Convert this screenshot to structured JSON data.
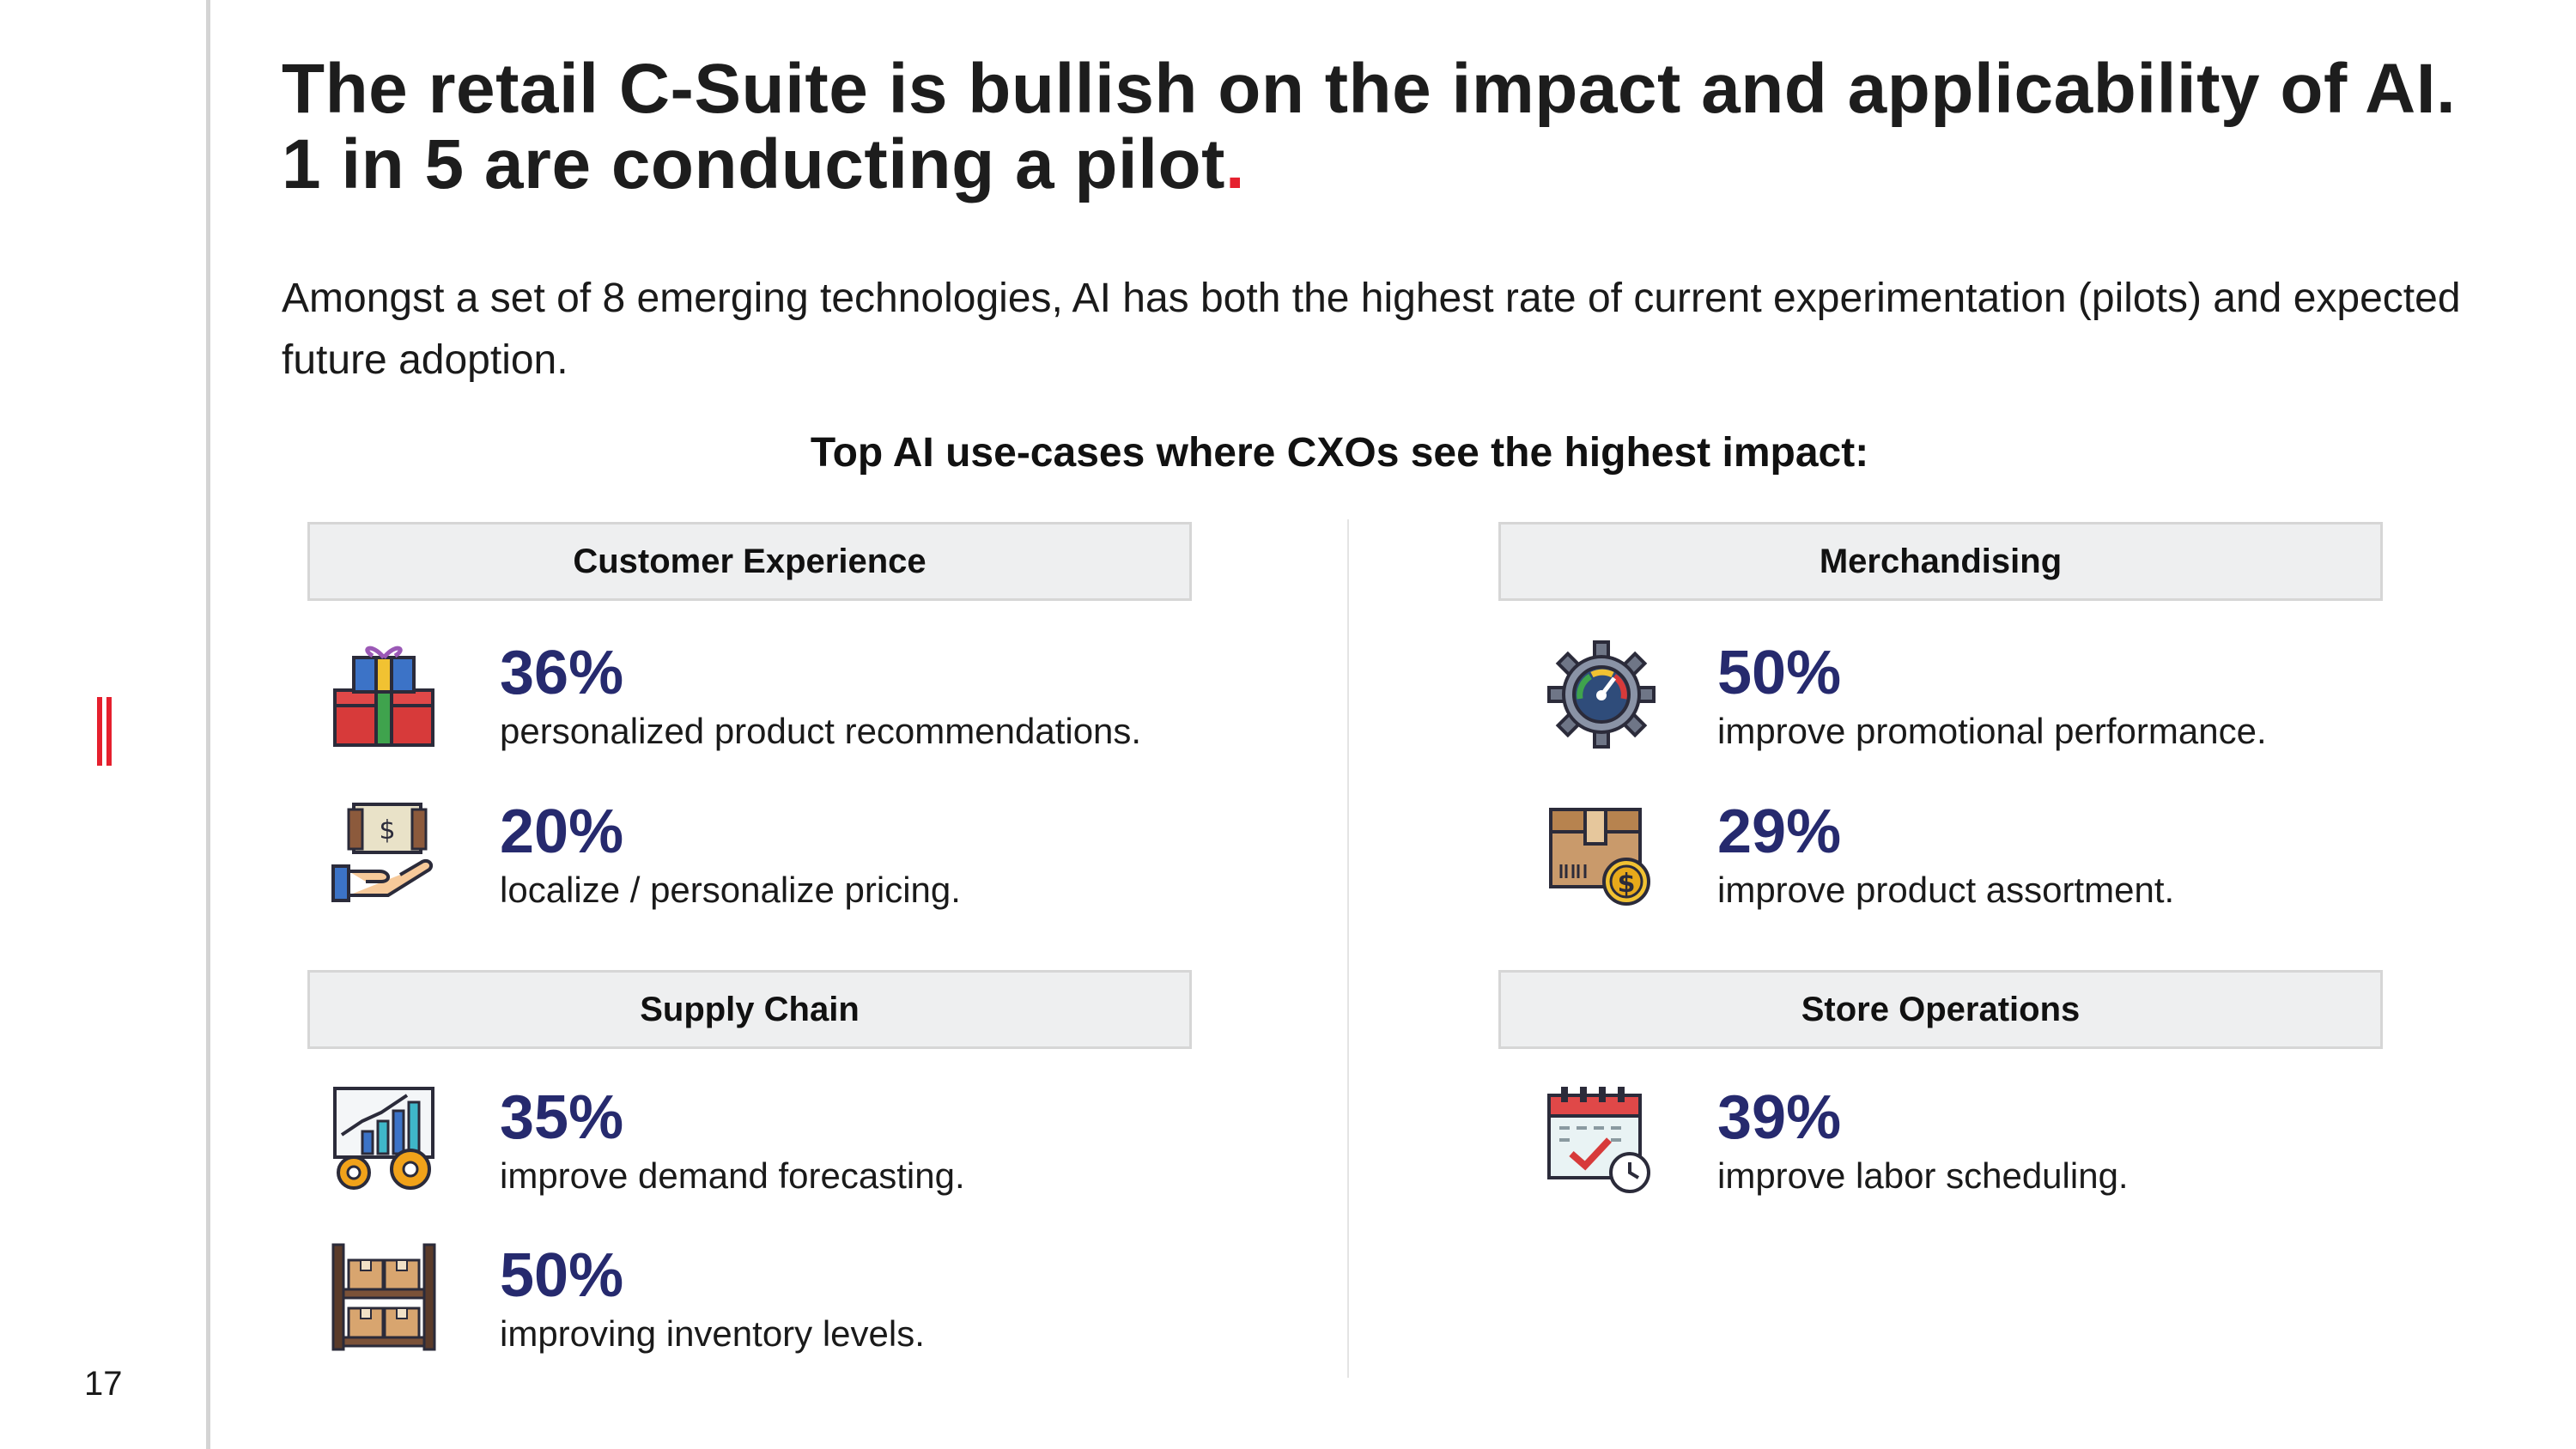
{
  "page": {
    "number": "17",
    "title_main": "The retail C-Suite is bullish on the impact and applicability of AI. 1 in 5 are conducting a pilot",
    "title_dot": ".",
    "intro": "Amongst a set of 8 emerging technologies, AI has both the highest rate of current experimentation (pilots) and expected future adoption.",
    "subheading": "Top AI use-cases where CXOs see the highest impact:"
  },
  "colors": {
    "accent_red": "#e5202e",
    "percent_navy": "#262a6e",
    "category_bg": "#eeeff0"
  },
  "categories": {
    "customer_experience": {
      "label": "Customer Experience",
      "items": [
        {
          "percent": "36%",
          "text": "personalized product recommendations.",
          "icon": "gift-boxes-icon"
        },
        {
          "percent": "20%",
          "text": "localize / personalize pricing.",
          "icon": "money-in-hand-icon"
        }
      ]
    },
    "merchandising": {
      "label": "Merchandising",
      "items": [
        {
          "percent": "50%",
          "text": "improve promotional performance.",
          "icon": "gear-gauge-icon"
        },
        {
          "percent": "29%",
          "text": "improve product assortment.",
          "icon": "box-with-coin-icon"
        }
      ]
    },
    "supply_chain": {
      "label": "Supply Chain",
      "items": [
        {
          "percent": "35%",
          "text": "improve demand forecasting.",
          "icon": "chart-with-gears-icon"
        },
        {
          "percent": "50%",
          "text": "improving inventory levels.",
          "icon": "warehouse-shelf-icon"
        }
      ]
    },
    "store_operations": {
      "label": "Store Operations",
      "items": [
        {
          "percent": "39%",
          "text": "improve labor scheduling.",
          "icon": "calendar-clock-icon"
        }
      ]
    }
  }
}
